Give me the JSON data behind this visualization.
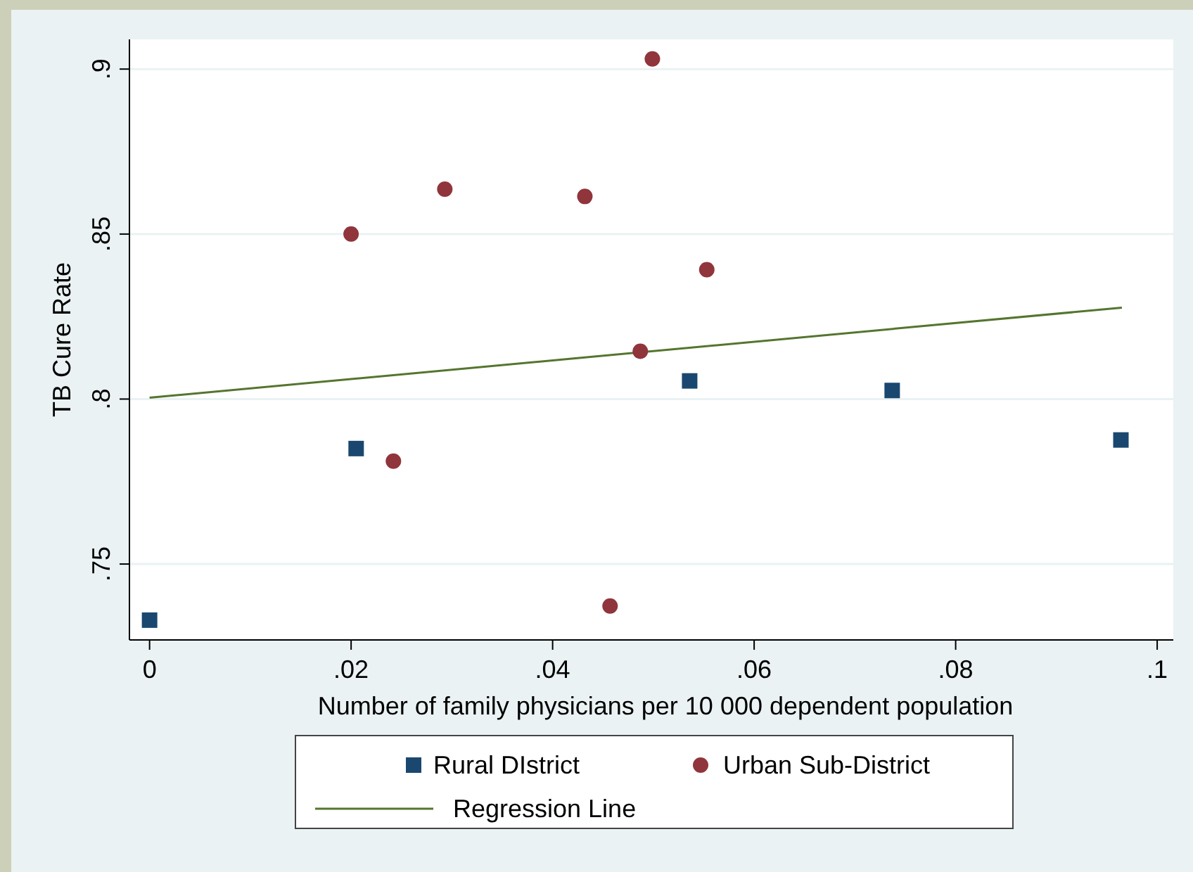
{
  "chart_data": {
    "type": "scatter",
    "xlabel": "Number of family physicians per 10 000 dependent population",
    "ylabel": "TB Cure Rate",
    "xlim": [
      -0.002,
      0.1016
    ],
    "xticks": [
      {
        "value": 0,
        "label": "0"
      },
      {
        "value": 0.02,
        "label": ".02"
      },
      {
        "value": 0.04,
        "label": ".04"
      },
      {
        "value": 0.06,
        "label": ".06"
      },
      {
        "value": 0.08,
        "label": ".08"
      },
      {
        "value": 0.1,
        "label": ".1"
      }
    ],
    "ylim": [
      0.727,
      0.909
    ],
    "yticks": [
      {
        "value": 0.75,
        "label": ".75"
      },
      {
        "value": 0.8,
        "label": ".8"
      },
      {
        "value": 0.85,
        "label": ".85"
      },
      {
        "value": 0.9,
        "label": ".9"
      }
    ],
    "grid": "y",
    "legend": "bottom",
    "series": [
      {
        "name": "Rural DIstrict",
        "marker": "square",
        "color": "#1a476f",
        "x": [
          0,
          0.0205,
          0.0536,
          0.0737,
          0.0964
        ],
        "values": [
          0.733,
          0.785,
          0.8055,
          0.8026,
          0.7876
        ]
      },
      {
        "name": "Urban Sub-District",
        "marker": "circle",
        "color": "#90353b",
        "x": [
          0.02,
          0.0293,
          0.0432,
          0.0499,
          0.0553,
          0.0487,
          0.0242,
          0.0457
        ],
        "values": [
          0.85,
          0.8636,
          0.8614,
          0.9031,
          0.8392,
          0.8145,
          0.7812,
          0.7373
        ]
      },
      {
        "name": "Regression Line",
        "type": "line",
        "line_style": "solid",
        "color": "#55752f",
        "x": [
          0,
          0.0965
        ],
        "values": [
          0.8004,
          0.8277
        ]
      }
    ]
  }
}
